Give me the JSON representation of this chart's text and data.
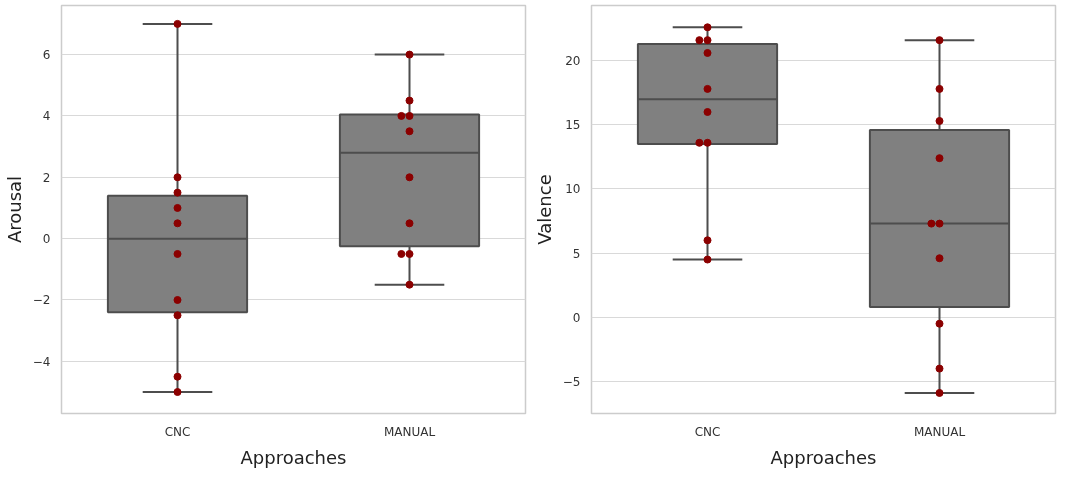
{
  "chart_data": [
    {
      "type": "box",
      "xlabel": "Approaches",
      "ylabel": "Arousal",
      "categories": [
        "CNC",
        "MANUAL"
      ],
      "color": "#808080",
      "ylim": [
        -5.7,
        7.6
      ],
      "yticks": [
        {
          "value": -4,
          "label": "−4"
        },
        {
          "value": -2,
          "label": "−2"
        },
        0,
        2,
        4,
        6
      ],
      "grid": "y",
      "boxes": [
        {
          "low": -5,
          "q1": -2.4,
          "median": 0,
          "q3": 1.4,
          "high": 7
        },
        {
          "low": -1.5,
          "q1": -0.25,
          "median": 2.8,
          "q3": 4.05,
          "high": 6
        }
      ],
      "series": [
        {
          "type": "scatter",
          "color": "#8b0000",
          "marker": "circle",
          "x": [
            "CNC",
            "CNC",
            "CNC",
            "CNC",
            "CNC",
            "CNC",
            "CNC",
            "CNC",
            "CNC",
            "CNC",
            "MANUAL",
            "MANUAL",
            "MANUAL",
            "MANUAL",
            "MANUAL",
            "MANUAL",
            "MANUAL",
            "MANUAL",
            "MANUAL",
            "MANUAL"
          ],
          "values": [
            7,
            2,
            1.5,
            1,
            0.5,
            -0.5,
            -2,
            -2.5,
            -4.5,
            -5,
            6,
            4.5,
            4,
            4,
            3.5,
            2,
            0.5,
            -0.5,
            -0.5,
            -1.5
          ]
        }
      ]
    },
    {
      "type": "box",
      "xlabel": "Approaches",
      "ylabel": "Valence",
      "categories": [
        "CNC",
        "MANUAL"
      ],
      "color": "#808080",
      "ylim": [
        -7.5,
        24.3
      ],
      "yticks": [
        {
          "value": -5,
          "label": "−5"
        },
        0,
        5,
        10,
        15,
        20
      ],
      "grid": "y",
      "boxes": [
        {
          "low": 4.5,
          "q1": 13.5,
          "median": 17,
          "q3": 21.3,
          "high": 22.6
        },
        {
          "low": -5.9,
          "q1": 0.8,
          "median": 7.3,
          "q3": 14.6,
          "high": 21.6
        }
      ],
      "series": [
        {
          "type": "scatter",
          "color": "#8b0000",
          "marker": "circle",
          "x": [
            "CNC",
            "CNC",
            "CNC",
            "CNC",
            "CNC",
            "CNC",
            "CNC",
            "CNC",
            "CNC",
            "CNC",
            "MANUAL",
            "MANUAL",
            "MANUAL",
            "MANUAL",
            "MANUAL",
            "MANUAL",
            "MANUAL",
            "MANUAL",
            "MANUAL",
            "MANUAL"
          ],
          "values": [
            22.6,
            21.6,
            21.6,
            20.6,
            17.8,
            16,
            13.6,
            13.6,
            6,
            4.5,
            21.6,
            17.8,
            15.3,
            12.4,
            7.3,
            7.3,
            4.6,
            -0.5,
            -4,
            -5.9
          ]
        }
      ]
    }
  ]
}
